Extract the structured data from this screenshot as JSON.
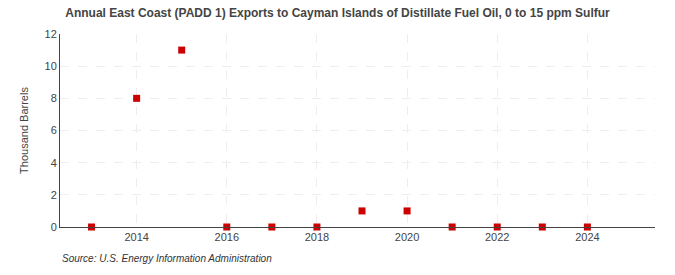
{
  "chart_data": {
    "type": "scatter",
    "title": "Annual East Coast (PADD 1) Exports to Cayman Islands of Distillate Fuel Oil, 0 to 15 ppm Sulfur",
    "y_label": "Thousand Barrels",
    "annotations": [
      "Source: U.S. Energy Information Administration"
    ],
    "x": [
      2013,
      2014,
      2015,
      2016,
      2017,
      2018,
      2019,
      2020,
      2021,
      2022,
      2023,
      2024
    ],
    "values": [
      0,
      8,
      11,
      0,
      0,
      0,
      1,
      1,
      0,
      0,
      0,
      0
    ],
    "color": "#cc0000",
    "marker": "square",
    "xlim": [
      2012.3,
      2025.5
    ],
    "xticks": [
      2014,
      2016,
      2018,
      2020,
      2022,
      2024
    ],
    "ylim": [
      0,
      12
    ],
    "yticks": [
      0,
      2,
      4,
      6,
      8,
      10,
      12
    ],
    "grid": true
  }
}
